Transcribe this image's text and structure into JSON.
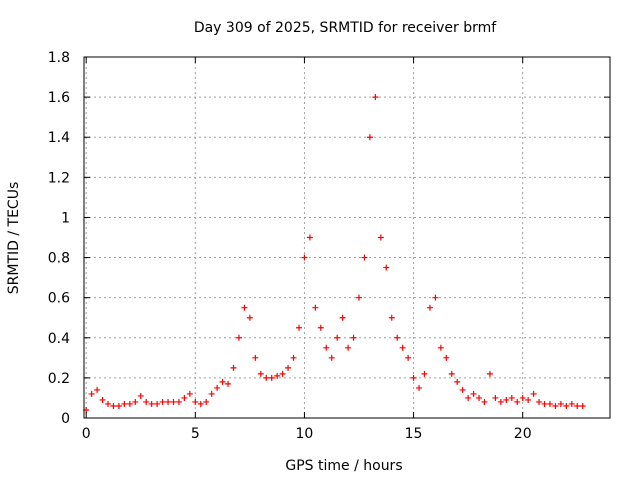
{
  "chart_data": {
    "type": "scatter",
    "title": "Day 309 of 2025, SRMTID for receiver brmf",
    "xlabel": "GPS time / hours",
    "ylabel": "SRMTID / TECUs",
    "xlim": [
      -0.1,
      24
    ],
    "ylim": [
      0,
      1.8
    ],
    "xticks": [
      0,
      5,
      10,
      15,
      20
    ],
    "xtick_labels": [
      "0",
      "5",
      "10",
      "15",
      "20"
    ],
    "yticks": [
      0,
      0.2,
      0.4,
      0.6,
      0.8,
      1,
      1.2,
      1.4,
      1.6,
      1.8
    ],
    "ytick_labels": [
      "0",
      "0.2",
      "0.4",
      "0.6",
      "0.8",
      "1",
      "1.2",
      "1.4",
      "1.6",
      "1.8"
    ],
    "grid": true,
    "marker": "+",
    "series": [
      {
        "name": "SRMTID",
        "color": "#ff0000",
        "x": [
          0.0,
          0.25,
          0.5,
          0.75,
          1.0,
          1.25,
          1.5,
          1.75,
          2.0,
          2.25,
          2.5,
          2.75,
          3.0,
          3.25,
          3.5,
          3.75,
          4.0,
          4.25,
          4.5,
          4.75,
          5.0,
          5.25,
          5.5,
          5.75,
          6.0,
          6.25,
          6.5,
          6.75,
          7.0,
          7.25,
          7.5,
          7.75,
          8.0,
          8.25,
          8.5,
          8.75,
          9.0,
          9.25,
          9.5,
          9.75,
          10.0,
          10.25,
          10.5,
          10.75,
          11.0,
          11.25,
          11.5,
          11.75,
          12.0,
          12.25,
          12.5,
          12.75,
          13.0,
          13.25,
          13.5,
          13.75,
          14.0,
          14.25,
          14.5,
          14.75,
          15.0,
          15.25,
          15.5,
          15.75,
          16.0,
          16.25,
          16.5,
          16.75,
          17.0,
          17.25,
          17.5,
          17.75,
          18.0,
          18.25,
          18.5,
          18.75,
          19.0,
          19.25,
          19.5,
          19.75,
          20.0,
          20.25,
          20.5,
          20.75,
          21.0,
          21.25,
          21.5,
          21.75,
          22.0,
          22.25,
          22.5,
          22.75
        ],
        "values": [
          0.04,
          0.12,
          0.14,
          0.09,
          0.07,
          0.06,
          0.06,
          0.07,
          0.07,
          0.08,
          0.11,
          0.08,
          0.07,
          0.07,
          0.08,
          0.08,
          0.08,
          0.08,
          0.1,
          0.12,
          0.08,
          0.07,
          0.08,
          0.12,
          0.15,
          0.18,
          0.17,
          0.25,
          0.4,
          0.55,
          0.5,
          0.3,
          0.22,
          0.2,
          0.2,
          0.21,
          0.22,
          0.25,
          0.3,
          0.45,
          0.8,
          0.9,
          0.55,
          0.45,
          0.35,
          0.3,
          0.4,
          0.5,
          0.35,
          0.4,
          0.6,
          0.8,
          1.4,
          1.6,
          0.9,
          0.75,
          0.5,
          0.4,
          0.35,
          0.3,
          0.2,
          0.15,
          0.22,
          0.55,
          0.6,
          0.35,
          0.3,
          0.22,
          0.18,
          0.14,
          0.1,
          0.12,
          0.1,
          0.08,
          0.22,
          0.1,
          0.08,
          0.09,
          0.1,
          0.08,
          0.1,
          0.09,
          0.12,
          0.08,
          0.07,
          0.07,
          0.06,
          0.07,
          0.06,
          0.07,
          0.06,
          0.06
        ]
      }
    ]
  }
}
